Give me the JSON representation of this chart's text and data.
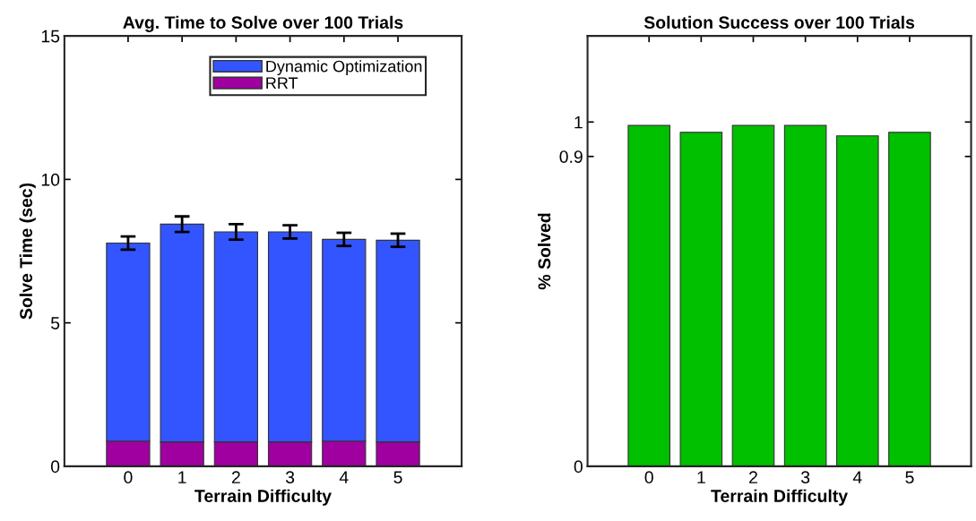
{
  "chart_data": [
    {
      "type": "bar",
      "title": "Avg. Time to Solve over 100 Trials",
      "xlabel": "Terrain Difficulty",
      "ylabel": "Solve Time (sec)",
      "categories": [
        "0",
        "1",
        "2",
        "3",
        "4",
        "5"
      ],
      "stacked": true,
      "series": [
        {
          "name": "RRT",
          "color": "#a000a0",
          "values": [
            0.88,
            0.85,
            0.85,
            0.85,
            0.88,
            0.85
          ]
        },
        {
          "name": "Dynamic Optimization",
          "color": "#3355ff",
          "values": [
            6.9,
            7.59,
            7.32,
            7.32,
            7.03,
            7.03
          ],
          "errors": [
            0.23,
            0.27,
            0.27,
            0.23,
            0.23,
            0.23
          ]
        }
      ],
      "ylim": [
        0,
        15
      ],
      "yticks": [
        0,
        5,
        10,
        15
      ],
      "legend": "top right",
      "grid": false
    },
    {
      "type": "bar",
      "title": "Solution Success over 100 Trials",
      "xlabel": "Terrain Difficulty",
      "ylabel": "% Solved",
      "categories": [
        "0",
        "1",
        "2",
        "3",
        "4",
        "5"
      ],
      "series": [
        {
          "color": "#00c000",
          "values": [
            0.99,
            0.97,
            0.99,
            0.99,
            0.96,
            0.97
          ]
        }
      ],
      "ylim": [
        0,
        1.25
      ],
      "yticks": [
        0,
        0.9,
        1
      ],
      "grid": false
    }
  ]
}
